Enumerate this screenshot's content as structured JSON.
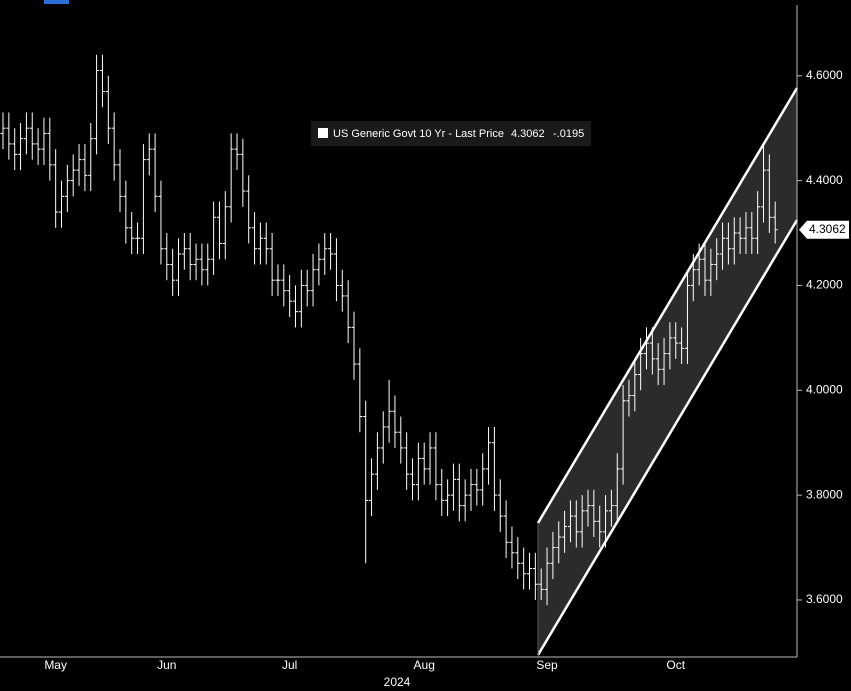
{
  "chart_data": {
    "type": "ohlc",
    "categories": [
      null,
      null,
      null,
      null,
      null,
      null,
      null,
      null,
      null,
      "May",
      null,
      null,
      null,
      null,
      null,
      null,
      null,
      null,
      null,
      null,
      null,
      null,
      null,
      null,
      null,
      null,
      null,
      null,
      "Jun",
      null,
      null,
      null,
      null,
      null,
      null,
      null,
      null,
      null,
      null,
      null,
      null,
      null,
      null,
      null,
      null,
      null,
      null,
      null,
      null,
      "Jul",
      null,
      null,
      null,
      null,
      null,
      null,
      null,
      null,
      null,
      null,
      null,
      null,
      null,
      null,
      null,
      null,
      null,
      null,
      null,
      null,
      null,
      null,
      "Aug",
      null,
      null,
      null,
      null,
      null,
      null,
      null,
      null,
      null,
      null,
      null,
      null,
      null,
      null,
      null,
      null,
      null,
      null,
      null,
      null,
      "Sep",
      null,
      null,
      null,
      null,
      null,
      null,
      null,
      null,
      null,
      null,
      null,
      null,
      null,
      null,
      null,
      null,
      null,
      null,
      null,
      null,
      null,
      "Oct",
      null,
      null,
      null,
      null,
      null,
      null,
      null,
      null,
      null,
      null,
      null,
      null,
      null,
      null,
      null,
      null,
      null
    ],
    "year_label": "2024",
    "series": [
      {
        "name": "US Generic Govt 10 Yr - Last Price",
        "color": "#ffffff",
        "open": [
          4.49,
          4.5,
          4.47,
          4.45,
          4.48,
          4.5,
          4.47,
          4.46,
          4.49,
          4.43,
          4.34,
          4.37,
          4.4,
          4.42,
          4.44,
          4.41,
          4.48,
          4.61,
          4.57,
          4.5,
          4.43,
          4.37,
          4.31,
          4.29,
          4.29,
          4.44,
          4.46,
          4.37,
          4.27,
          4.24,
          4.21,
          4.26,
          4.27,
          4.24,
          4.25,
          4.23,
          4.25,
          4.33,
          4.28,
          4.35,
          4.46,
          4.45,
          4.38,
          4.31,
          4.27,
          4.29,
          4.27,
          4.21,
          4.21,
          4.19,
          4.17,
          4.15,
          4.2,
          4.19,
          4.23,
          4.25,
          4.27,
          4.26,
          4.2,
          4.18,
          4.12,
          4.05,
          3.95,
          3.79,
          3.84,
          3.89,
          3.93,
          3.96,
          3.92,
          3.89,
          3.84,
          3.82,
          3.87,
          3.85,
          3.89,
          3.82,
          3.79,
          3.8,
          3.83,
          3.78,
          3.8,
          3.82,
          3.81,
          3.85,
          3.9,
          3.8,
          3.76,
          3.71,
          3.69,
          3.67,
          3.65,
          3.66,
          3.63,
          3.62,
          3.67,
          3.7,
          3.72,
          3.74,
          3.76,
          3.73,
          3.77,
          3.78,
          3.75,
          3.73,
          3.77,
          3.78,
          3.85,
          3.98,
          3.99,
          4.03,
          4.07,
          4.09,
          4.06,
          4.04,
          4.07,
          4.1,
          4.09,
          4.08,
          4.2,
          4.23,
          4.25,
          4.21,
          4.24,
          4.26,
          4.29,
          4.27,
          4.3,
          4.29,
          4.31,
          4.29,
          4.35,
          4.42,
          4.33
        ],
        "high": [
          4.53,
          4.53,
          4.5,
          4.51,
          4.53,
          4.53,
          4.5,
          4.52,
          4.52,
          4.46,
          4.4,
          4.43,
          4.45,
          4.47,
          4.47,
          4.51,
          4.64,
          4.64,
          4.6,
          4.53,
          4.46,
          4.4,
          4.34,
          4.32,
          4.47,
          4.49,
          4.49,
          4.4,
          4.3,
          4.27,
          4.29,
          4.3,
          4.3,
          4.28,
          4.28,
          4.28,
          4.36,
          4.36,
          4.38,
          4.49,
          4.49,
          4.48,
          4.41,
          4.34,
          4.32,
          4.32,
          4.3,
          4.24,
          4.24,
          4.22,
          4.2,
          4.23,
          4.23,
          4.26,
          4.28,
          4.3,
          4.3,
          4.29,
          4.23,
          4.21,
          4.15,
          4.08,
          3.98,
          3.87,
          3.92,
          3.96,
          4.02,
          3.99,
          3.95,
          3.92,
          3.87,
          3.9,
          3.9,
          3.92,
          3.92,
          3.85,
          3.83,
          3.86,
          3.86,
          3.83,
          3.85,
          3.85,
          3.88,
          3.93,
          3.93,
          3.83,
          3.79,
          3.74,
          3.72,
          3.7,
          3.69,
          3.69,
          3.66,
          3.7,
          3.73,
          3.75,
          3.77,
          3.79,
          3.79,
          3.8,
          3.81,
          3.81,
          3.78,
          3.8,
          3.81,
          3.88,
          4.01,
          4.02,
          4.06,
          4.1,
          4.12,
          4.12,
          4.09,
          4.1,
          4.13,
          4.13,
          4.12,
          4.23,
          4.26,
          4.28,
          4.28,
          4.27,
          4.29,
          4.32,
          4.32,
          4.33,
          4.33,
          4.34,
          4.34,
          4.38,
          4.47,
          4.45,
          4.36
        ],
        "low": [
          4.46,
          4.44,
          4.42,
          4.42,
          4.45,
          4.44,
          4.43,
          4.43,
          4.4,
          4.31,
          4.31,
          4.34,
          4.37,
          4.39,
          4.38,
          4.38,
          4.45,
          4.54,
          4.47,
          4.4,
          4.34,
          4.28,
          4.26,
          4.26,
          4.26,
          4.41,
          4.34,
          4.24,
          4.21,
          4.18,
          4.18,
          4.23,
          4.21,
          4.21,
          4.2,
          4.2,
          4.22,
          4.25,
          4.25,
          4.32,
          4.42,
          4.35,
          4.28,
          4.24,
          4.24,
          4.24,
          4.18,
          4.18,
          4.16,
          4.14,
          4.12,
          4.12,
          4.16,
          4.16,
          4.2,
          4.22,
          4.23,
          4.17,
          4.15,
          4.09,
          4.02,
          3.92,
          3.67,
          3.76,
          3.81,
          3.86,
          3.9,
          3.89,
          3.86,
          3.81,
          3.79,
          3.79,
          3.82,
          3.82,
          3.79,
          3.76,
          3.76,
          3.77,
          3.75,
          3.75,
          3.77,
          3.78,
          3.78,
          3.82,
          3.77,
          3.73,
          3.68,
          3.66,
          3.64,
          3.62,
          3.62,
          3.6,
          3.6,
          3.59,
          3.64,
          3.67,
          3.69,
          3.71,
          3.7,
          3.7,
          3.74,
          3.72,
          3.7,
          3.7,
          3.74,
          3.75,
          3.82,
          3.95,
          3.96,
          4.0,
          4.04,
          4.03,
          4.01,
          4.01,
          4.04,
          4.06,
          4.05,
          4.05,
          4.17,
          4.2,
          4.18,
          4.18,
          4.21,
          4.23,
          4.24,
          4.24,
          4.26,
          4.26,
          4.26,
          4.26,
          4.32,
          4.3,
          4.28
        ],
        "close": [
          4.5,
          4.47,
          4.45,
          4.48,
          4.5,
          4.47,
          4.46,
          4.49,
          4.43,
          4.34,
          4.37,
          4.4,
          4.42,
          4.44,
          4.41,
          4.48,
          4.61,
          4.57,
          4.5,
          4.43,
          4.37,
          4.31,
          4.29,
          4.29,
          4.44,
          4.46,
          4.37,
          4.27,
          4.24,
          4.21,
          4.26,
          4.27,
          4.24,
          4.25,
          4.23,
          4.25,
          4.33,
          4.28,
          4.35,
          4.46,
          4.45,
          4.38,
          4.31,
          4.27,
          4.29,
          4.27,
          4.21,
          4.21,
          4.19,
          4.17,
          4.15,
          4.2,
          4.19,
          4.23,
          4.25,
          4.27,
          4.26,
          4.2,
          4.18,
          4.12,
          4.05,
          3.95,
          3.79,
          3.84,
          3.89,
          3.93,
          3.96,
          3.92,
          3.89,
          3.84,
          3.82,
          3.87,
          3.85,
          3.89,
          3.82,
          3.79,
          3.8,
          3.83,
          3.78,
          3.8,
          3.82,
          3.81,
          3.85,
          3.9,
          3.8,
          3.76,
          3.71,
          3.69,
          3.67,
          3.65,
          3.66,
          3.63,
          3.62,
          3.67,
          3.7,
          3.72,
          3.74,
          3.76,
          3.73,
          3.77,
          3.78,
          3.75,
          3.73,
          3.77,
          3.78,
          3.85,
          3.98,
          3.99,
          4.03,
          4.07,
          4.09,
          4.06,
          4.04,
          4.07,
          4.1,
          4.09,
          4.08,
          4.2,
          4.23,
          4.25,
          4.21,
          4.24,
          4.26,
          4.29,
          4.27,
          4.3,
          4.29,
          4.31,
          4.29,
          4.35,
          4.42,
          4.33,
          4.3062
        ]
      }
    ],
    "change_label": "-.0195",
    "ylim": [
      3.495,
      4.735
    ],
    "yticks": [
      {
        "value": 3.6,
        "label": "3.6000"
      },
      {
        "value": 3.8,
        "label": "3.8000"
      },
      {
        "value": 4.0,
        "label": "4.0000"
      },
      {
        "value": 4.2,
        "label": "4.2000"
      },
      {
        "value": 4.4,
        "label": "4.4000"
      },
      {
        "value": 4.6,
        "label": "4.6000"
      }
    ]
  }
}
